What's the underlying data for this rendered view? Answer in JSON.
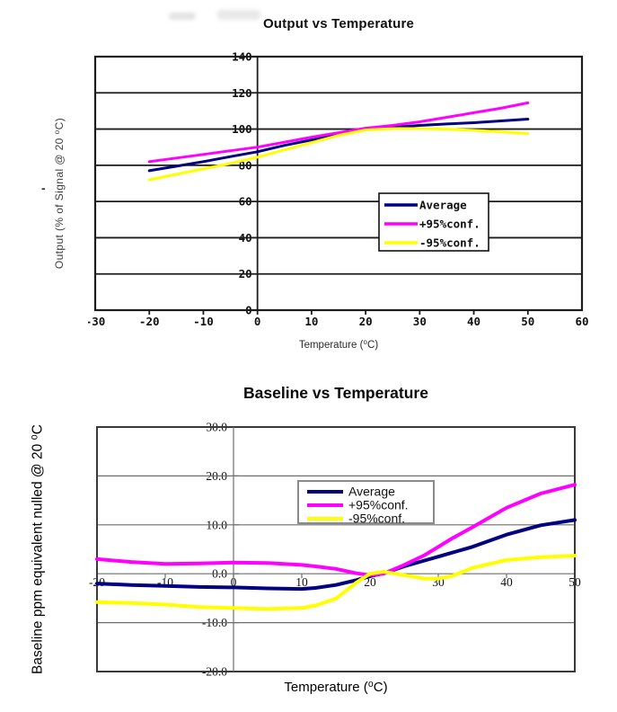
{
  "page": {
    "background": "#ffffff",
    "stray_dash": "-"
  },
  "chart_data": [
    {
      "type": "line",
      "title": "Output vs Temperature",
      "xlabel": "Temperature (⁰C)",
      "ylabel": "Output (% of Signal @ 20 ⁰C)",
      "grid": true,
      "legend_position": "lower-right-inside",
      "x_axis": {
        "range": [
          -30,
          60
        ],
        "tick_values": [
          -30,
          -20,
          -10,
          0,
          10,
          20,
          30,
          40,
          50,
          60
        ],
        "tick_labels": [
          "-30",
          "-20",
          "-10",
          "0",
          "10",
          "20",
          "30",
          "40",
          "50",
          "60"
        ]
      },
      "y_axis": {
        "range": [
          0,
          140
        ],
        "tick_values": [
          0,
          20,
          40,
          60,
          80,
          100,
          120,
          140
        ],
        "tick_labels": [
          "0",
          "20",
          "40",
          "60",
          "80",
          "100",
          "120",
          "140"
        ]
      },
      "series": [
        {
          "name": "Average",
          "color": "#000080",
          "x": [
            -20,
            -15,
            -10,
            -5,
            0,
            5,
            10,
            15,
            20,
            25,
            30,
            35,
            40,
            45,
            50
          ],
          "y": [
            77,
            79.5,
            82,
            84.8,
            87.5,
            91,
            94,
            97,
            100,
            101,
            102,
            102.8,
            103.5,
            104.5,
            105.5
          ]
        },
        {
          "name": "+95%conf.",
          "color": "#ff00ff",
          "x": [
            -20,
            -15,
            -10,
            -5,
            0,
            5,
            10,
            15,
            20,
            25,
            30,
            35,
            40,
            45,
            50
          ],
          "y": [
            82,
            84,
            86,
            88,
            90,
            92.8,
            95.5,
            98,
            100.5,
            102,
            104,
            106.5,
            109,
            111.5,
            114.5
          ]
        },
        {
          "name": "-95%conf.",
          "color": "#ffff00",
          "x": [
            -20,
            -15,
            -10,
            -5,
            0,
            5,
            10,
            15,
            20,
            25,
            30,
            35,
            40,
            45,
            50
          ],
          "y": [
            72,
            75,
            78,
            81,
            84.5,
            88.5,
            92.5,
            96.5,
            99.5,
            100.3,
            100.3,
            100,
            99.3,
            98.5,
            97.5
          ]
        }
      ]
    },
    {
      "type": "line",
      "title": "Baseline vs Temperature",
      "xlabel": "Temperature (⁰C)",
      "ylabel": "Baseline ppm equivalent nulled @ 20 ⁰C",
      "grid": true,
      "legend_position": "top-center-inside",
      "x_axis": {
        "range": [
          -20,
          50
        ],
        "tick_values": [
          -20,
          -10,
          0,
          10,
          20,
          30,
          40,
          50
        ],
        "tick_labels": [
          "-20",
          "-10",
          "0",
          "10",
          "20",
          "30",
          "40",
          "50"
        ]
      },
      "y_axis": {
        "range": [
          -20,
          30
        ],
        "tick_values": [
          30,
          20,
          10,
          0,
          -10,
          -20
        ],
        "tick_labels": [
          "30.0",
          "20.0",
          "10.0",
          "0.0",
          "-10.0",
          "-20.0"
        ]
      },
      "series": [
        {
          "name": "Average",
          "color": "#000080",
          "x": [
            -20,
            -15,
            -10,
            -5,
            0,
            5,
            10,
            12,
            15,
            18,
            20,
            22,
            25,
            28,
            30,
            32,
            35,
            40,
            45,
            50
          ],
          "y": [
            -2.0,
            -2.3,
            -2.5,
            -2.7,
            -2.8,
            -3.0,
            -3.1,
            -2.9,
            -2.3,
            -1.3,
            -0.5,
            0.1,
            1.5,
            2.7,
            3.5,
            4.3,
            5.5,
            8.0,
            9.9,
            11.0
          ]
        },
        {
          "name": "+95%conf.",
          "color": "#ff00ff",
          "x": [
            -20,
            -15,
            -10,
            -5,
            0,
            5,
            10,
            12,
            15,
            18,
            20,
            22,
            25,
            28,
            30,
            32,
            35,
            40,
            45,
            50
          ],
          "y": [
            3.0,
            2.4,
            2.0,
            2.1,
            2.3,
            2.2,
            1.8,
            1.5,
            1.0,
            0.1,
            -0.3,
            0.0,
            1.8,
            3.8,
            5.5,
            7.2,
            9.5,
            13.5,
            16.4,
            18.2
          ]
        },
        {
          "name": "-95%conf.",
          "color": "#ffff00",
          "x": [
            -20,
            -15,
            -10,
            -5,
            0,
            5,
            10,
            12,
            15,
            18,
            20,
            22,
            25,
            28,
            30,
            32,
            35,
            40,
            45,
            50
          ],
          "y": [
            -5.8,
            -6.0,
            -6.3,
            -6.8,
            -7.0,
            -7.2,
            -7.0,
            -6.5,
            -5.1,
            -1.8,
            0.0,
            0.4,
            -0.3,
            -1.0,
            -1.0,
            -0.5,
            1.2,
            2.8,
            3.4,
            3.7
          ]
        }
      ]
    }
  ]
}
